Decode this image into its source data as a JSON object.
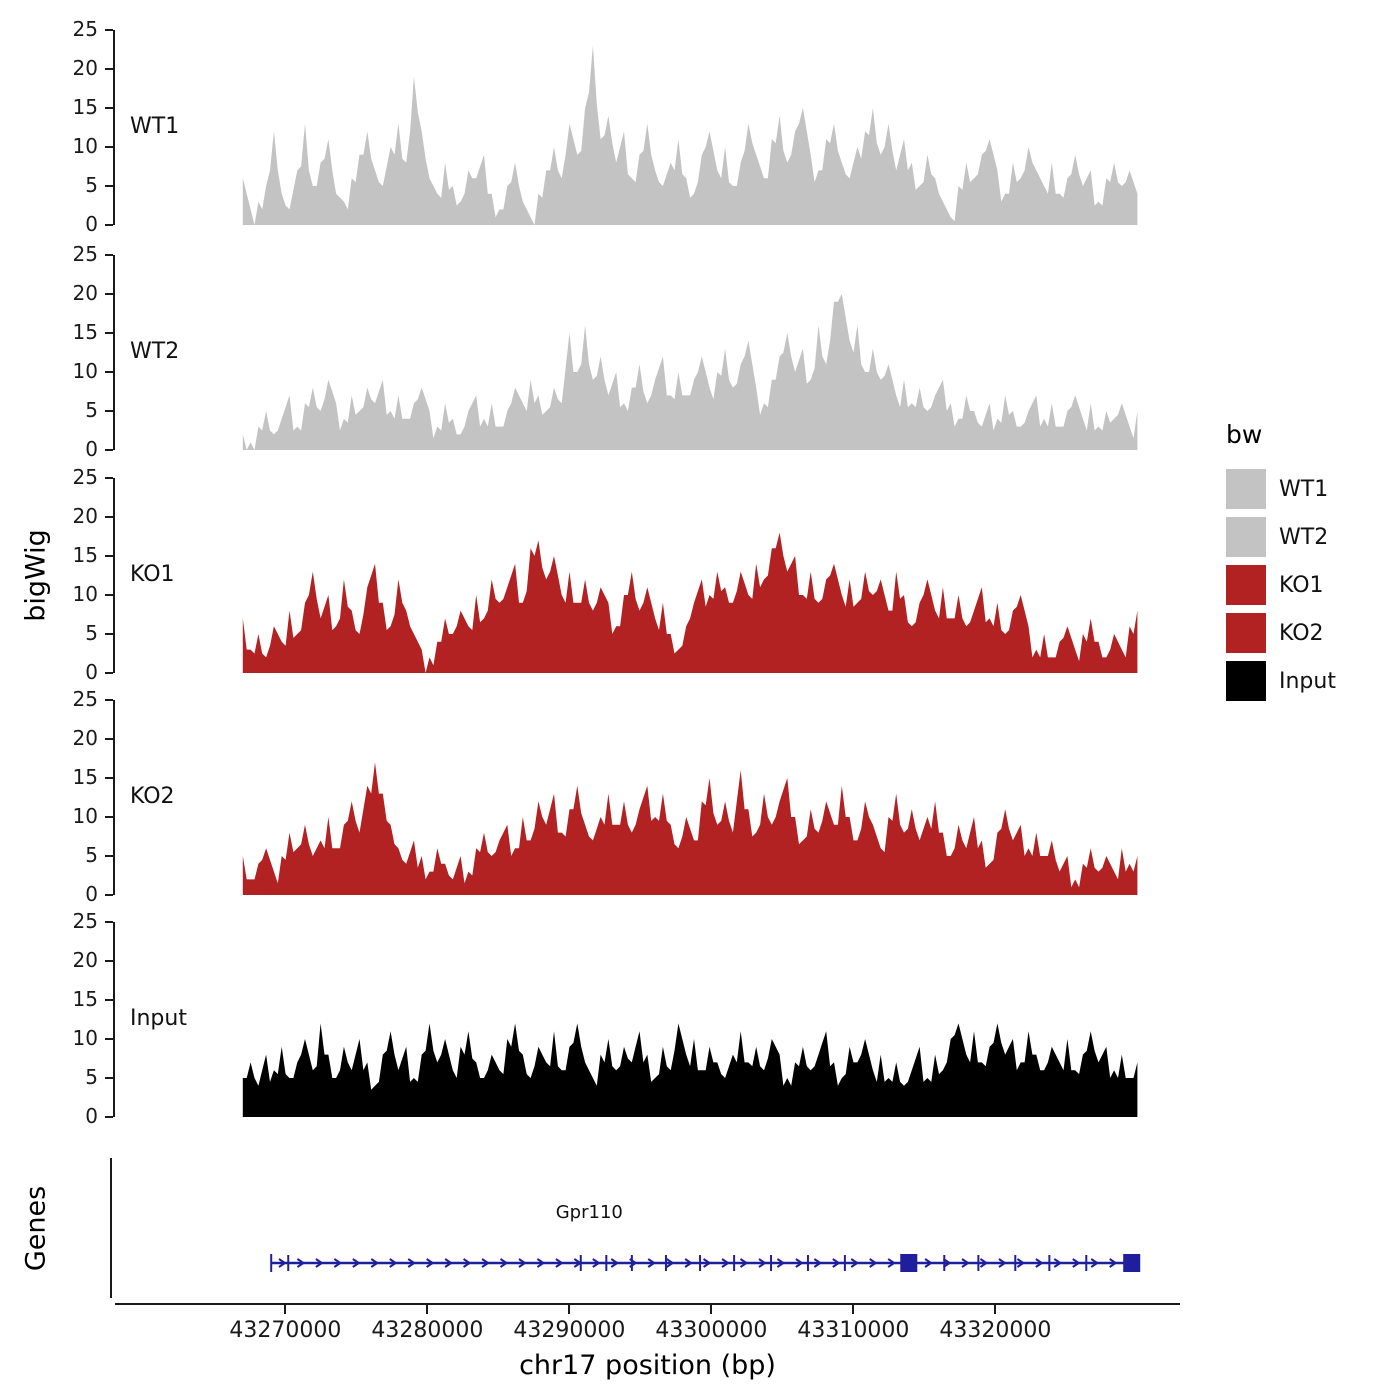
{
  "legend": {
    "title": "bw",
    "entries": [
      {
        "label": "WT1",
        "color": "#c3c3c3"
      },
      {
        "label": "WT2",
        "color": "#c3c3c3"
      },
      {
        "label": "KO1",
        "color": "#b22222"
      },
      {
        "label": "KO2",
        "color": "#b22222"
      },
      {
        "label": "Input",
        "color": "#000000"
      }
    ]
  },
  "chart_data": {
    "type": "area",
    "ylabel": "bigWig",
    "xlabel": "chr17 position (bp)",
    "genes_label": "Genes",
    "ylim": [
      0,
      25
    ],
    "y_ticks": [
      0,
      5,
      10,
      15,
      20,
      25
    ],
    "xlim": [
      43258000,
      43333000
    ],
    "x_ticks": [
      43270000,
      43280000,
      43290000,
      43300000,
      43310000,
      43320000
    ],
    "x_start": 43267000,
    "x_end": 43330000,
    "grid": false,
    "legend_position": "right",
    "tracks": [
      {
        "name": "WT1",
        "color": "#c3c3c3",
        "values": [
          6,
          2,
          3,
          5,
          12,
          4,
          2,
          7,
          13,
          5,
          8,
          11,
          4,
          3,
          6,
          9,
          12,
          7,
          5,
          10,
          13,
          8,
          19,
          12,
          6,
          4,
          8,
          5,
          3,
          7,
          6,
          9,
          4,
          2,
          5,
          8,
          3,
          1,
          4,
          7,
          10,
          6,
          13,
          9,
          15,
          23,
          11,
          14,
          8,
          12,
          6,
          9,
          13,
          7,
          5,
          8,
          11,
          6,
          4,
          9,
          12,
          7,
          10,
          5,
          8,
          13,
          9,
          6,
          11,
          14,
          8,
          12,
          15,
          9,
          7,
          11,
          13,
          8,
          6,
          10,
          12,
          15,
          9,
          13,
          7,
          11,
          8,
          5,
          9,
          6,
          3,
          1,
          5,
          8,
          6,
          9,
          11,
          7,
          4,
          8,
          6,
          10,
          7,
          5,
          8,
          4,
          6,
          9,
          5,
          7,
          3,
          6,
          8,
          5,
          7,
          4
        ]
      },
      {
        "name": "WT2",
        "color": "#c3c3c3",
        "values": [
          2,
          1,
          3,
          5,
          2,
          4,
          7,
          3,
          6,
          8,
          5,
          9,
          6,
          4,
          7,
          5,
          8,
          6,
          9,
          5,
          7,
          4,
          6,
          8,
          5,
          3,
          6,
          4,
          2,
          5,
          7,
          4,
          6,
          3,
          5,
          8,
          6,
          9,
          7,
          5,
          8,
          6,
          15,
          10,
          16,
          9,
          12,
          7,
          10,
          6,
          8,
          11,
          6,
          9,
          12,
          7,
          10,
          7,
          9,
          12,
          8,
          10,
          13,
          8,
          11,
          14,
          8,
          6,
          9,
          12,
          15,
          10,
          13,
          9,
          16,
          11,
          19,
          20,
          14,
          16,
          10,
          13,
          9,
          11,
          7,
          9,
          6,
          8,
          5,
          7,
          9,
          6,
          4,
          7,
          5,
          3,
          6,
          4,
          7,
          5,
          3,
          5,
          7,
          4,
          6,
          3,
          5,
          7,
          4,
          6,
          3,
          5,
          4,
          6,
          3,
          5
        ]
      },
      {
        "name": "KO1",
        "color": "#b22222",
        "values": [
          7,
          3,
          5,
          2,
          6,
          4,
          8,
          5,
          9,
          13,
          7,
          10,
          6,
          12,
          8,
          5,
          11,
          14,
          9,
          6,
          12,
          8,
          5,
          3,
          2,
          4,
          7,
          5,
          8,
          6,
          10,
          7,
          12,
          9,
          11,
          14,
          9,
          16,
          17,
          12,
          15,
          10,
          13,
          9,
          12,
          8,
          11,
          9,
          6,
          10,
          13,
          8,
          11,
          7,
          9,
          5,
          3,
          6,
          9,
          12,
          10,
          13,
          11,
          9,
          13,
          10,
          14,
          12,
          16,
          18,
          13,
          15,
          10,
          13,
          9,
          12,
          14,
          10,
          12,
          9,
          13,
          10,
          12,
          8,
          13,
          10,
          6,
          9,
          12,
          8,
          11,
          7,
          10,
          6,
          8,
          11,
          7,
          9,
          5,
          8,
          10,
          6,
          3,
          5,
          2,
          4,
          6,
          3,
          5,
          7,
          4,
          2,
          5,
          3,
          6,
          8
        ]
      },
      {
        "name": "KO2",
        "color": "#b22222",
        "values": [
          5,
          2,
          4,
          6,
          3,
          5,
          8,
          6,
          9,
          5,
          7,
          10,
          6,
          9,
          12,
          8,
          14,
          17,
          13,
          9,
          6,
          4,
          7,
          5,
          3,
          6,
          4,
          2,
          5,
          3,
          6,
          8,
          5,
          7,
          9,
          6,
          10,
          7,
          12,
          9,
          13,
          8,
          11,
          14,
          9,
          7,
          10,
          13,
          9,
          12,
          8,
          11,
          14,
          10,
          13,
          9,
          6,
          10,
          7,
          12,
          15,
          9,
          12,
          8,
          16,
          11,
          8,
          13,
          9,
          12,
          15,
          10,
          7,
          11,
          8,
          12,
          9,
          14,
          10,
          7,
          12,
          9,
          6,
          10,
          13,
          8,
          11,
          7,
          10,
          12,
          8,
          5,
          9,
          6,
          10,
          7,
          4,
          8,
          11,
          7,
          9,
          6,
          8,
          5,
          7,
          3,
          5,
          2,
          4,
          6,
          3,
          5,
          3,
          6,
          4,
          5
        ]
      },
      {
        "name": "Input",
        "color": "#000000",
        "values": [
          5,
          7,
          4,
          8,
          6,
          9,
          5,
          7,
          10,
          6,
          12,
          8,
          5,
          9,
          6,
          10,
          7,
          4,
          8,
          11,
          6,
          9,
          5,
          8,
          12,
          7,
          10,
          6,
          9,
          11,
          7,
          5,
          8,
          6,
          10,
          12,
          8,
          5,
          9,
          7,
          11,
          6,
          9,
          12,
          7,
          5,
          8,
          10,
          6,
          9,
          7,
          11,
          8,
          5,
          9,
          6,
          12,
          8,
          10,
          6,
          9,
          7,
          5,
          8,
          11,
          7,
          9,
          6,
          10,
          8,
          5,
          7,
          9,
          6,
          8,
          11,
          7,
          5,
          9,
          7,
          10,
          6,
          8,
          5,
          7,
          4,
          6,
          9,
          5,
          8,
          6,
          10,
          12,
          8,
          11,
          7,
          9,
          12,
          8,
          10,
          7,
          11,
          8,
          6,
          9,
          7,
          10,
          6,
          8,
          11,
          7,
          9,
          6,
          8,
          5,
          7
        ]
      }
    ],
    "gene": {
      "name": "Gpr110",
      "start": 43269000,
      "end": 43330000,
      "strand": "+",
      "color": "#1f1f9e",
      "arrow_spacing": 1300,
      "exon_ticks": [
        43270200,
        43290800,
        43292600,
        43294400,
        43296800,
        43299200,
        43301600,
        43304200,
        43306800,
        43309400,
        43316400,
        43318800,
        43321400,
        43323800,
        43326400
      ],
      "box_exons": [
        [
          43313300,
          43314500
        ],
        [
          43329000,
          43330200
        ]
      ]
    }
  }
}
